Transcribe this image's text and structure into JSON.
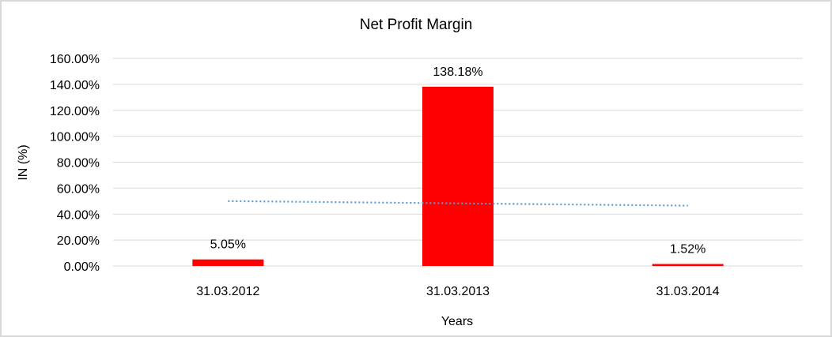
{
  "chart_data": {
    "type": "bar",
    "title": "Net Profit Margin",
    "xlabel": "Years",
    "ylabel": "IN (%)",
    "categories": [
      "31.03.2012",
      "31.03.2013",
      "31.03.2014"
    ],
    "series": [
      {
        "name": "Net Profit Margin",
        "values": [
          5.05,
          138.18,
          1.52
        ],
        "color": "#ff0000"
      }
    ],
    "data_labels": [
      "5.05%",
      "138.18%",
      "1.52%"
    ],
    "trendline": {
      "type": "linear",
      "style": "dotted",
      "color": "#5b9bd5"
    },
    "ylim": [
      0,
      160
    ],
    "yticks": [
      0,
      20,
      40,
      60,
      80,
      100,
      120,
      140,
      160
    ],
    "ytick_labels": [
      "0.00%",
      "20.00%",
      "40.00%",
      "60.00%",
      "80.00%",
      "100.00%",
      "120.00%",
      "140.00%",
      "160.00%"
    ],
    "grid": true,
    "legend": "none"
  }
}
